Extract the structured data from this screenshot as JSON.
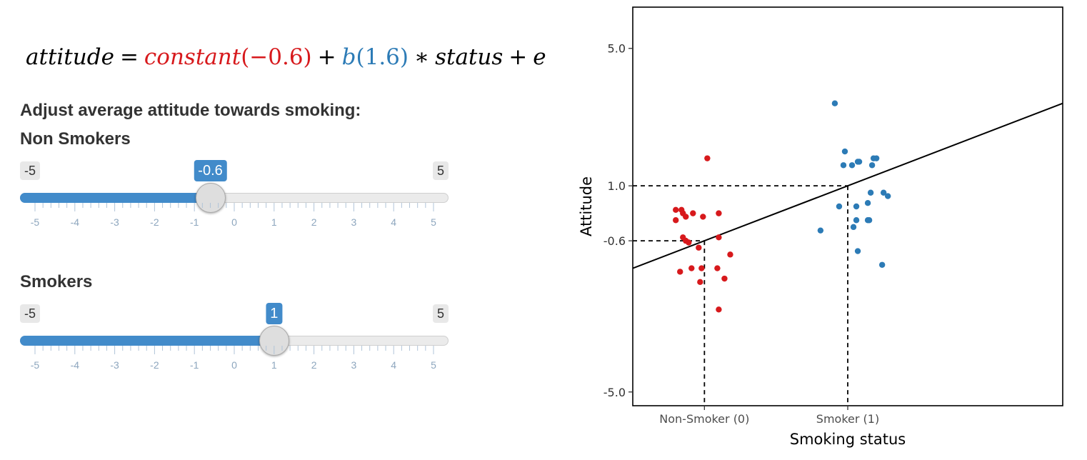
{
  "formula": {
    "lhs": "attitude",
    "eq": "=",
    "constant_name": "constant",
    "constant_value": "(−0.6)",
    "plus1": "+",
    "b_name": "b",
    "b_value": "(1.6)",
    "times": "∗",
    "status": "status",
    "plus2": "+",
    "e": "e",
    "colors": {
      "constant": "#d7191c",
      "b": "#2c7bb6",
      "text": "#000000"
    }
  },
  "section_heading": "Adjust average attitude towards smoking:",
  "sliders": [
    {
      "label": "Non Smokers",
      "min": -5,
      "max": 5,
      "value": -0.6,
      "min_label": "-5",
      "max_label": "5",
      "value_label": "-0.6",
      "tick_labels": [
        "-5",
        "-4",
        "-3",
        "-2",
        "-1",
        "0",
        "1",
        "2",
        "3",
        "4",
        "5"
      ]
    },
    {
      "label": "Smokers",
      "min": -5,
      "max": 5,
      "value": 1,
      "min_label": "-5",
      "max_label": "5",
      "value_label": "1",
      "tick_labels": [
        "-5",
        "-4",
        "-3",
        "-2",
        "-1",
        "0",
        "1",
        "2",
        "3",
        "4",
        "5"
      ]
    }
  ],
  "colors": {
    "accent": "#428bca",
    "non_smoker": "#d7191c",
    "smoker": "#2c7bb6"
  },
  "chart_data": {
    "type": "scatter",
    "xlabel": "Smoking status",
    "ylabel": "Attitude",
    "categories": [
      "Non-Smoker (0)",
      "Smoker (1)"
    ],
    "xlim": [
      -0.5,
      2.5
    ],
    "ylim": [
      -5.4,
      6.2
    ],
    "y_ticks": [
      5.0,
      1.0,
      -0.6,
      -5.0
    ],
    "y_tick_labels": [
      "5.0",
      "1.0",
      "-0.6",
      "-5.0"
    ],
    "regression_line": {
      "intercept": -0.6,
      "slope": 1.6
    },
    "reference_lines": [
      {
        "x": 0,
        "y": -0.6
      },
      {
        "x": 1,
        "y": 1.0
      }
    ],
    "series": [
      {
        "x": [
          0.02,
          -0.2,
          -0.16,
          -0.15,
          -0.13,
          -0.08,
          -0.01,
          0.1,
          0.1,
          -0.13,
          -0.11,
          -0.04,
          -0.02,
          0.18,
          -0.09,
          -0.17,
          0.09,
          0.14,
          -0.03,
          0.1,
          -0.15,
          -0.2
        ],
        "y": [
          1.8,
          0.3,
          0.3,
          0.2,
          0.1,
          0.2,
          0.1,
          -0.5,
          0.2,
          -0.6,
          -0.65,
          -0.8,
          -1.4,
          -1.0,
          -1.4,
          -1.5,
          -1.4,
          -1.7,
          -1.8,
          -2.6,
          -0.5,
          0.0
        ],
        "color": "#d7191c"
      },
      {
        "x": [
          -0.09,
          -0.02,
          -0.03,
          0.03,
          0.08,
          0.07,
          0.17,
          0.2,
          0.18,
          0.16,
          0.25,
          0.28,
          0.24,
          0.14,
          0.15,
          0.06,
          -0.06,
          0.04,
          -0.19,
          0.07,
          0.06,
          0.14
        ],
        "y": [
          3.4,
          2.0,
          1.6,
          1.6,
          1.7,
          1.7,
          1.6,
          1.8,
          1.8,
          0.8,
          0.8,
          0.7,
          -1.3,
          0.0,
          0.0,
          0.0,
          0.4,
          -0.2,
          -0.3,
          -0.9,
          0.4,
          0.5
        ],
        "color": "#2c7bb6"
      }
    ]
  }
}
